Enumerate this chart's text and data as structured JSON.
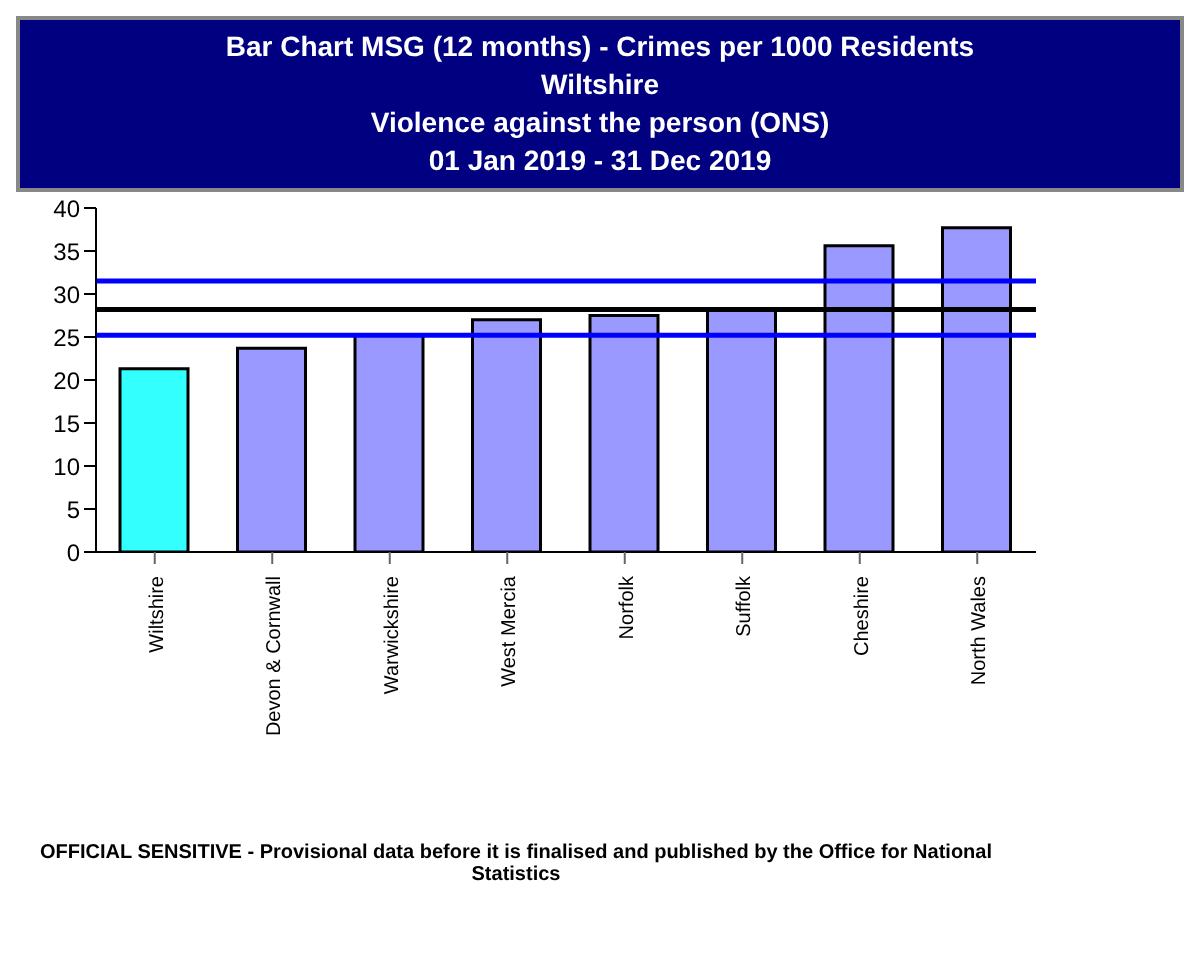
{
  "chart_data": {
    "type": "bar",
    "title": "Bar Chart MSG (12 months) - Crimes per 1000 Residents",
    "subtitle": "Wiltshire\nViolence against the person (ONS)\n01 Jan 2019 - 31 Dec 2019",
    "categories": [
      "Wiltshire",
      "Devon & Cornwall",
      "Warwickshire",
      "West Mercia",
      "Norfolk",
      "Suffolk",
      "Cheshire",
      "North Wales"
    ],
    "values": [
      21.3,
      23.7,
      25.2,
      27.0,
      27.5,
      28.1,
      35.6,
      37.7
    ],
    "colors": [
      "#33ffff",
      "#9999ff",
      "#9999ff",
      "#9999ff",
      "#9999ff",
      "#9999ff",
      "#9999ff",
      "#9999ff"
    ],
    "ylim": [
      0,
      40
    ],
    "yticks": [
      0,
      5,
      10,
      15,
      20,
      25,
      30,
      35,
      40
    ],
    "grid": false,
    "ref_lines": [
      {
        "axis": "y",
        "value": 31.5,
        "color": "#0000ff"
      },
      {
        "axis": "y",
        "value": 28.2,
        "color": "#000000"
      },
      {
        "axis": "y",
        "value": 25.2,
        "color": "#0000ff"
      }
    ],
    "annotations": [
      "OFFICIAL SENSITIVE - Provisional data before it is finalised and published by the Office for National Statistics"
    ]
  }
}
